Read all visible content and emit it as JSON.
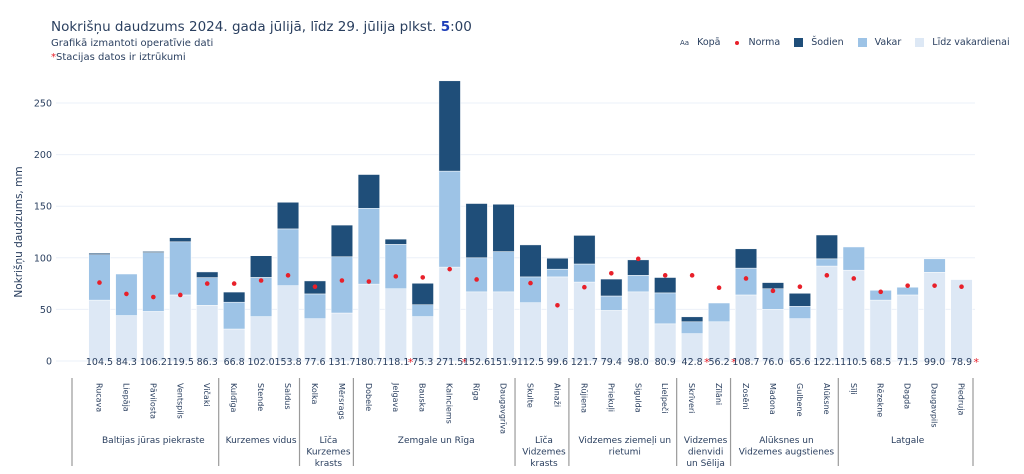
{
  "header": {
    "title_prefix": "Nokrišņu daudzums 2024. gada jūlijā, līdz 29. jūlija plkst. ",
    "title_hour": "5",
    "title_suffix": ":00",
    "subtitle": "Grafikā izmantoti operatīvie dati",
    "missing_note_star": "*",
    "missing_note": "Stacijas datos ir iztrūkumi"
  },
  "legend": [
    {
      "key": "kopa",
      "label": "Kopā",
      "icon": "Aa"
    },
    {
      "key": "norma",
      "label": "Norma",
      "color": "#e8202a"
    },
    {
      "key": "sodien",
      "label": "Šodien",
      "color": "#1f4e79"
    },
    {
      "key": "vakar",
      "label": "Vakar",
      "color": "#9dc3e6"
    },
    {
      "key": "lidz",
      "label": "Līdz vakardienai",
      "color": "#dde8f5"
    }
  ],
  "chart_data": {
    "type": "bar",
    "stacked": true,
    "title": "Nokrišņu daudzums 2024. gada jūlijā, līdz 29. jūlija plkst. 5:00",
    "xlabel": "",
    "ylabel": "Nokrišņu daudzums, mm",
    "ylim": [
      0,
      280
    ],
    "yticks": [
      0,
      50,
      100,
      150,
      200,
      250
    ],
    "grid": true,
    "legend_position": "top-right",
    "categories": [
      "Rucava",
      "Liepāja",
      "Pāvilosta",
      "Ventspils",
      "Vičaki",
      "Kuldīga",
      "Stende",
      "Saldus",
      "Kolka",
      "Mērsrags",
      "Dobele",
      "Jelgava",
      "Bauska",
      "Kalnciems",
      "Rīga",
      "Daugavgrīva",
      "Skulte",
      "Ainaži",
      "Rūjiena",
      "Priekuļi",
      "Sigulda",
      "Lielpeči",
      "Skrīveri",
      "Zīlāni",
      "Zosēni",
      "Madona",
      "Gulbene",
      "Alūksne",
      "Sīļi",
      "Rēzekne",
      "Dagda",
      "Daugavpils",
      "Piedruja"
    ],
    "groups": [
      {
        "label": "Baltijas jūras piekraste",
        "count": 5
      },
      {
        "label": "Kurzemes vidus",
        "count": 3
      },
      {
        "label": "Līča Kurzemes krasts",
        "count": 2
      },
      {
        "label": "Zemgale un Rīga",
        "count": 6
      },
      {
        "label": "Līča Vidzemes krasts",
        "count": 2
      },
      {
        "label": "Vidzemes ziemeļi un rietumi",
        "count": 4
      },
      {
        "label": "Vidzemes dienvidi un Sēlija",
        "count": 2
      },
      {
        "label": "Alūksnes un Vidzemes augstienes",
        "count": 4
      },
      {
        "label": "Latgale",
        "count": 5
      }
    ],
    "totals": [
      104.5,
      84.3,
      106.2,
      119.5,
      86.3,
      66.8,
      102.0,
      153.8,
      77.6,
      131.7,
      180.7,
      118.1,
      75.3,
      271.5,
      152.6,
      151.9,
      112.5,
      99.6,
      121.7,
      79.4,
      98.0,
      80.9,
      42.8,
      56.2,
      108.7,
      76.0,
      65.6,
      122.1,
      110.5,
      68.5,
      71.5,
      99.0,
      78.9
    ],
    "total_labels": [
      "104.5",
      "84.3",
      "106.2",
      "119.5",
      "86.3",
      "66.8",
      "102.0",
      "153.8",
      "77.6",
      "131.7",
      "180.7",
      "118.1",
      "75.3",
      "271.5",
      "152.6",
      "151.9",
      "112.5",
      "99.6",
      "121.7",
      "79.4",
      "98.0",
      "80.9",
      "42.8",
      "56.2",
      "108.7",
      "76.0",
      "65.6",
      "122.1",
      "110.5",
      "68.5",
      "71.5",
      "99.0",
      "78.9"
    ],
    "missing_data": [
      false,
      false,
      false,
      false,
      false,
      false,
      false,
      false,
      false,
      false,
      false,
      true,
      false,
      true,
      false,
      false,
      false,
      false,
      false,
      false,
      false,
      false,
      true,
      true,
      false,
      false,
      false,
      false,
      false,
      false,
      false,
      false,
      true
    ],
    "series": [
      {
        "name": "Līdz vakardienai",
        "values": [
          59,
          44,
          48,
          64,
          54,
          31,
          43,
          73,
          41,
          46.5,
          74.5,
          70,
          43,
          91,
          67,
          67,
          56.5,
          81.5,
          76.5,
          49,
          67,
          36,
          26.5,
          38,
          64,
          50,
          41,
          92,
          88,
          59,
          64,
          86,
          78.9
        ]
      },
      {
        "name": "Vakar",
        "values": [
          44,
          40.3,
          57,
          51.5,
          26.8,
          26,
          38,
          55,
          24,
          54.5,
          73.5,
          43,
          11.5,
          93,
          33,
          39,
          25,
          7.5,
          17.5,
          14,
          16,
          30,
          11.5,
          18.2,
          26,
          20,
          12,
          7,
          22.5,
          9.5,
          7.5,
          13,
          0
        ]
      },
      {
        "name": "Šodien",
        "values": [
          1.5,
          0,
          1.2,
          4,
          5.5,
          9.8,
          21,
          25.8,
          12.6,
          30.7,
          32.7,
          5.1,
          20.8,
          87.5,
          52.6,
          45.9,
          31,
          10.6,
          27.7,
          16.4,
          15,
          14.9,
          4.8,
          0,
          18.7,
          6,
          12.6,
          23.1,
          0,
          0,
          0,
          0,
          0
        ]
      },
      {
        "name": "Norma",
        "type": "scatter",
        "values": [
          76,
          65,
          62,
          64,
          75,
          75,
          78,
          83,
          72,
          78,
          77,
          82,
          81,
          89,
          79,
          null,
          75.5,
          54,
          71.5,
          85,
          99,
          83,
          83,
          71,
          80,
          68,
          72,
          83,
          80,
          67,
          73,
          73,
          72
        ]
      }
    ]
  }
}
